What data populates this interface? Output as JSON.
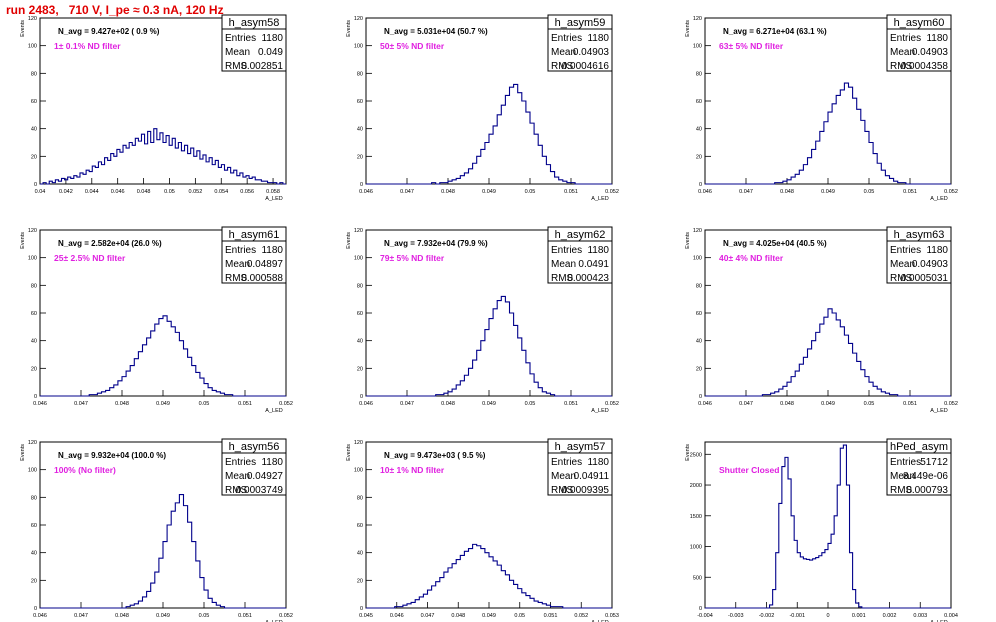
{
  "page_title": "run 2483,   710 V, I_pe ≈ 0.3 nA, 120 Hz",
  "stats_labels": {
    "entries": "Entries",
    "mean": "Mean",
    "rms": "RMS"
  },
  "y_axis_label": "Events",
  "x_axis_label": "A_LED",
  "colors": {
    "title": "#e00000",
    "histogram": "#00008b",
    "annotation": "#e020e0",
    "frame": "#000000"
  },
  "chart_data": [
    {
      "type": "histogram",
      "name": "h_asym58",
      "entries": "1180",
      "mean": "0.049",
      "rms": "0.002851",
      "n_avg": "N_avg = 9.427e+02 ( 0.9 %)",
      "filter": "1± 0.1% ND filter",
      "xlim": [
        0.04,
        0.059
      ],
      "ylim": [
        0,
        120
      ],
      "xticks": [
        0.04,
        0.042,
        0.044,
        0.046,
        0.048,
        0.05,
        0.052,
        0.054,
        0.056,
        0.058
      ],
      "xtick_labels": [
        "0.04",
        "0.042",
        "0.044",
        "0.046",
        "0.048",
        "0.05",
        "0.052",
        "0.054",
        "0.056",
        "0.058"
      ],
      "yticks": [
        0,
        20,
        40,
        60,
        80,
        100,
        120
      ],
      "ytick_labels": [
        "0",
        "20",
        "40",
        "60",
        "80",
        "100",
        "120"
      ],
      "counts": [
        0,
        1,
        0,
        2,
        1,
        3,
        2,
        4,
        3,
        5,
        4,
        6,
        5,
        8,
        7,
        10,
        9,
        13,
        12,
        16,
        14,
        19,
        17,
        22,
        20,
        25,
        23,
        28,
        26,
        30,
        28,
        33,
        31,
        36,
        29,
        38,
        30,
        40,
        32,
        37,
        30,
        35,
        28,
        33,
        26,
        30,
        24,
        28,
        22,
        26,
        20,
        24,
        18,
        21,
        16,
        19,
        14,
        17,
        12,
        14,
        10,
        12,
        8,
        10,
        6,
        8,
        5,
        6,
        4,
        5,
        3,
        3,
        2,
        2,
        1,
        1,
        1,
        0,
        1,
        0
      ]
    },
    {
      "type": "histogram",
      "name": "h_asym59",
      "entries": "1180",
      "mean": "0.04903",
      "rms": "0.0004616",
      "n_avg": "N_avg = 5.031e+04 (50.7 %)",
      "filter": "50± 5% ND filter",
      "xlim": [
        0.046,
        0.052
      ],
      "ylim": [
        0,
        120
      ],
      "xticks": [
        0.046,
        0.047,
        0.048,
        0.049,
        0.05,
        0.051,
        0.052
      ],
      "xtick_labels": [
        "0.046",
        "0.047",
        "0.048",
        "0.049",
        "0.05",
        "0.051",
        "0.052"
      ],
      "yticks": [
        0,
        20,
        40,
        60,
        80,
        100,
        120
      ],
      "ytick_labels": [
        "0",
        "20",
        "40",
        "60",
        "80",
        "100",
        "120"
      ],
      "counts": [
        0,
        0,
        0,
        0,
        0,
        0,
        0,
        0,
        0,
        0,
        0,
        0,
        0,
        0,
        0,
        0,
        1,
        0,
        1,
        1,
        2,
        3,
        4,
        6,
        8,
        11,
        15,
        20,
        25,
        30,
        36,
        42,
        50,
        57,
        64,
        70,
        72,
        66,
        60,
        52,
        44,
        36,
        28,
        20,
        14,
        9,
        5,
        3,
        2,
        1,
        1,
        0,
        0,
        0,
        0,
        0,
        0,
        0,
        0,
        0
      ]
    },
    {
      "type": "histogram",
      "name": "h_asym60",
      "entries": "1180",
      "mean": "0.04903",
      "rms": "0.0004358",
      "n_avg": "N_avg = 6.271e+04 (63.1 %)",
      "filter": "63± 5% ND filter",
      "xlim": [
        0.046,
        0.052
      ],
      "ylim": [
        0,
        120
      ],
      "xticks": [
        0.046,
        0.047,
        0.048,
        0.049,
        0.05,
        0.051,
        0.052
      ],
      "xtick_labels": [
        "0.046",
        "0.047",
        "0.048",
        "0.049",
        "0.05",
        "0.051",
        "0.052"
      ],
      "yticks": [
        0,
        20,
        40,
        60,
        80,
        100,
        120
      ],
      "ytick_labels": [
        "0",
        "20",
        "40",
        "60",
        "80",
        "100",
        "120"
      ],
      "counts": [
        0,
        0,
        0,
        0,
        0,
        0,
        0,
        0,
        0,
        0,
        0,
        0,
        0,
        0,
        0,
        0,
        0,
        1,
        1,
        2,
        3,
        5,
        7,
        10,
        14,
        19,
        25,
        31,
        38,
        45,
        52,
        58,
        64,
        68,
        73,
        70,
        62,
        54,
        46,
        38,
        30,
        22,
        15,
        10,
        6,
        4,
        2,
        1,
        1,
        0,
        0,
        0,
        0,
        0,
        0,
        0,
        0,
        0,
        0,
        0
      ]
    },
    {
      "type": "histogram",
      "name": "h_asym61",
      "entries": "1180",
      "mean": "0.04897",
      "rms": "0.000588",
      "n_avg": "N_avg = 2.582e+04 (26.0 %)",
      "filter": "25± 2.5% ND filter",
      "xlim": [
        0.046,
        0.052
      ],
      "ylim": [
        0,
        120
      ],
      "xticks": [
        0.046,
        0.047,
        0.048,
        0.049,
        0.05,
        0.051,
        0.052
      ],
      "xtick_labels": [
        "0.046",
        "0.047",
        "0.048",
        "0.049",
        "0.05",
        "0.051",
        "0.052"
      ],
      "yticks": [
        0,
        20,
        40,
        60,
        80,
        100,
        120
      ],
      "ytick_labels": [
        "0",
        "20",
        "40",
        "60",
        "80",
        "100",
        "120"
      ],
      "counts": [
        0,
        0,
        0,
        0,
        0,
        0,
        0,
        0,
        0,
        0,
        0,
        0,
        1,
        1,
        2,
        3,
        4,
        6,
        8,
        11,
        14,
        18,
        22,
        27,
        32,
        37,
        42,
        47,
        52,
        56,
        58,
        54,
        50,
        46,
        40,
        34,
        28,
        22,
        17,
        13,
        9,
        6,
        4,
        3,
        2,
        1,
        1,
        0,
        0,
        0,
        0,
        0,
        0,
        0,
        0,
        0,
        0,
        0,
        0,
        0
      ]
    },
    {
      "type": "histogram",
      "name": "h_asym62",
      "entries": "1180",
      "mean": "0.0491",
      "rms": "0.000423",
      "n_avg": "N_avg = 7.932e+04 (79.9 %)",
      "filter": "79± 5% ND filter",
      "xlim": [
        0.046,
        0.052
      ],
      "ylim": [
        0,
        120
      ],
      "xticks": [
        0.046,
        0.047,
        0.048,
        0.049,
        0.05,
        0.051,
        0.052
      ],
      "xtick_labels": [
        "0.046",
        "0.047",
        "0.048",
        "0.049",
        "0.05",
        "0.051",
        "0.052"
      ],
      "yticks": [
        0,
        20,
        40,
        60,
        80,
        100,
        120
      ],
      "ytick_labels": [
        "0",
        "20",
        "40",
        "60",
        "80",
        "100",
        "120"
      ],
      "counts": [
        0,
        0,
        0,
        0,
        0,
        0,
        0,
        0,
        0,
        0,
        0,
        0,
        0,
        0,
        0,
        0,
        0,
        1,
        1,
        2,
        3,
        5,
        8,
        11,
        15,
        20,
        26,
        33,
        40,
        48,
        56,
        63,
        69,
        72,
        68,
        60,
        51,
        42,
        33,
        24,
        16,
        10,
        6,
        3,
        2,
        1,
        0,
        0,
        0,
        0,
        0,
        0,
        0,
        0,
        0,
        0,
        0,
        0,
        0,
        0
      ]
    },
    {
      "type": "histogram",
      "name": "h_asym63",
      "entries": "1180",
      "mean": "0.04903",
      "rms": "0.0005031",
      "n_avg": "N_avg = 4.025e+04 (40.5 %)",
      "filter": "40± 4% ND filter",
      "xlim": [
        0.046,
        0.052
      ],
      "ylim": [
        0,
        120
      ],
      "xticks": [
        0.046,
        0.047,
        0.048,
        0.049,
        0.05,
        0.051,
        0.052
      ],
      "xtick_labels": [
        "0.046",
        "0.047",
        "0.048",
        "0.049",
        "0.05",
        "0.051",
        "0.052"
      ],
      "yticks": [
        0,
        20,
        40,
        60,
        80,
        100,
        120
      ],
      "ytick_labels": [
        "0",
        "20",
        "40",
        "60",
        "80",
        "100",
        "120"
      ],
      "counts": [
        0,
        0,
        0,
        0,
        0,
        0,
        0,
        0,
        0,
        0,
        0,
        0,
        0,
        0,
        1,
        1,
        2,
        3,
        5,
        7,
        10,
        14,
        18,
        23,
        28,
        34,
        40,
        46,
        52,
        57,
        63,
        60,
        55,
        50,
        44,
        38,
        31,
        25,
        19,
        14,
        10,
        7,
        5,
        3,
        2,
        1,
        1,
        0,
        0,
        0,
        0,
        0,
        0,
        0,
        0,
        0,
        0,
        0,
        0,
        0
      ]
    },
    {
      "type": "histogram",
      "name": "h_asym56",
      "entries": "1180",
      "mean": "0.04927",
      "rms": "0.0003749",
      "n_avg": "N_avg = 9.932e+04 (100.0 %)",
      "filter": "100% (No filter)",
      "xlim": [
        0.046,
        0.052
      ],
      "ylim": [
        0,
        120
      ],
      "xticks": [
        0.046,
        0.047,
        0.048,
        0.049,
        0.05,
        0.051,
        0.052
      ],
      "xtick_labels": [
        "0.046",
        "0.047",
        "0.048",
        "0.049",
        "0.05",
        "0.051",
        "0.052"
      ],
      "yticks": [
        0,
        20,
        40,
        60,
        80,
        100,
        120
      ],
      "ytick_labels": [
        "0",
        "20",
        "40",
        "60",
        "80",
        "100",
        "120"
      ],
      "counts": [
        0,
        0,
        0,
        0,
        0,
        0,
        0,
        0,
        0,
        0,
        0,
        0,
        0,
        0,
        0,
        0,
        0,
        0,
        0,
        0,
        0,
        1,
        2,
        3,
        5,
        8,
        12,
        18,
        26,
        36,
        48,
        60,
        70,
        76,
        82,
        74,
        62,
        48,
        34,
        22,
        13,
        7,
        4,
        2,
        1,
        0,
        0,
        0,
        0,
        0,
        0,
        0,
        0,
        0,
        0,
        0,
        0,
        0,
        0,
        0
      ]
    },
    {
      "type": "histogram",
      "name": "h_asym57",
      "entries": "1180",
      "mean": "0.04911",
      "rms": "0.0009395",
      "n_avg": "N_avg = 9.473e+03 ( 9.5 %)",
      "filter": "10± 1% ND filter",
      "xlim": [
        0.045,
        0.053
      ],
      "ylim": [
        0,
        120
      ],
      "xticks": [
        0.045,
        0.046,
        0.047,
        0.048,
        0.049,
        0.05,
        0.051,
        0.052,
        0.053
      ],
      "xtick_labels": [
        "0.045",
        "0.046",
        "0.047",
        "0.048",
        "0.049",
        "0.05",
        "0.051",
        "0.052",
        "0.053"
      ],
      "yticks": [
        0,
        20,
        40,
        60,
        80,
        100,
        120
      ],
      "ytick_labels": [
        "0",
        "20",
        "40",
        "60",
        "80",
        "100",
        "120"
      ],
      "counts": [
        0,
        0,
        0,
        0,
        0,
        0,
        0,
        1,
        1,
        2,
        3,
        4,
        6,
        8,
        10,
        13,
        16,
        19,
        22,
        26,
        29,
        32,
        35,
        38,
        41,
        43,
        46,
        45,
        43,
        40,
        37,
        34,
        31,
        27,
        24,
        20,
        17,
        14,
        11,
        9,
        7,
        5,
        4,
        3,
        2,
        1,
        1,
        1,
        0,
        0,
        0,
        0,
        0,
        0,
        0,
        0,
        0,
        0,
        0,
        0
      ]
    },
    {
      "type": "histogram",
      "name": "hPed_asym",
      "entries": "51712",
      "mean": "8.449e-06",
      "rms": "0.000793",
      "n_avg": "",
      "filter": "Shutter Closed",
      "xlim": [
        -0.004,
        0.004
      ],
      "ylim": [
        0,
        2700
      ],
      "xticks": [
        -0.004,
        -0.003,
        -0.002,
        -0.001,
        0,
        0.001,
        0.002,
        0.003,
        0.004
      ],
      "xtick_labels": [
        "-0.004",
        "-0.003",
        "-0.002",
        "-0.001",
        "0",
        "0.001",
        "0.002",
        "0.003",
        "0.004"
      ],
      "yticks": [
        0,
        500,
        1000,
        1500,
        2000,
        2500
      ],
      "ytick_labels": [
        "0",
        "500",
        "1000",
        "1500",
        "2000",
        "2500"
      ],
      "counts": [
        0,
        0,
        0,
        0,
        0,
        0,
        0,
        0,
        0,
        0,
        0,
        0,
        0,
        0,
        0,
        0,
        0,
        0,
        0,
        0,
        0,
        50,
        300,
        900,
        1700,
        2300,
        2450,
        2100,
        1500,
        1100,
        900,
        830,
        800,
        790,
        780,
        800,
        820,
        850,
        900,
        950,
        1050,
        1200,
        1500,
        2000,
        2600,
        2650,
        2000,
        900,
        300,
        80,
        20,
        0,
        0,
        0,
        0,
        0,
        0,
        0,
        0,
        0,
        0,
        0,
        0,
        0,
        0,
        0,
        0,
        0,
        0,
        0,
        0,
        0,
        0,
        0,
        0,
        0,
        0,
        0,
        0,
        0
      ]
    }
  ]
}
